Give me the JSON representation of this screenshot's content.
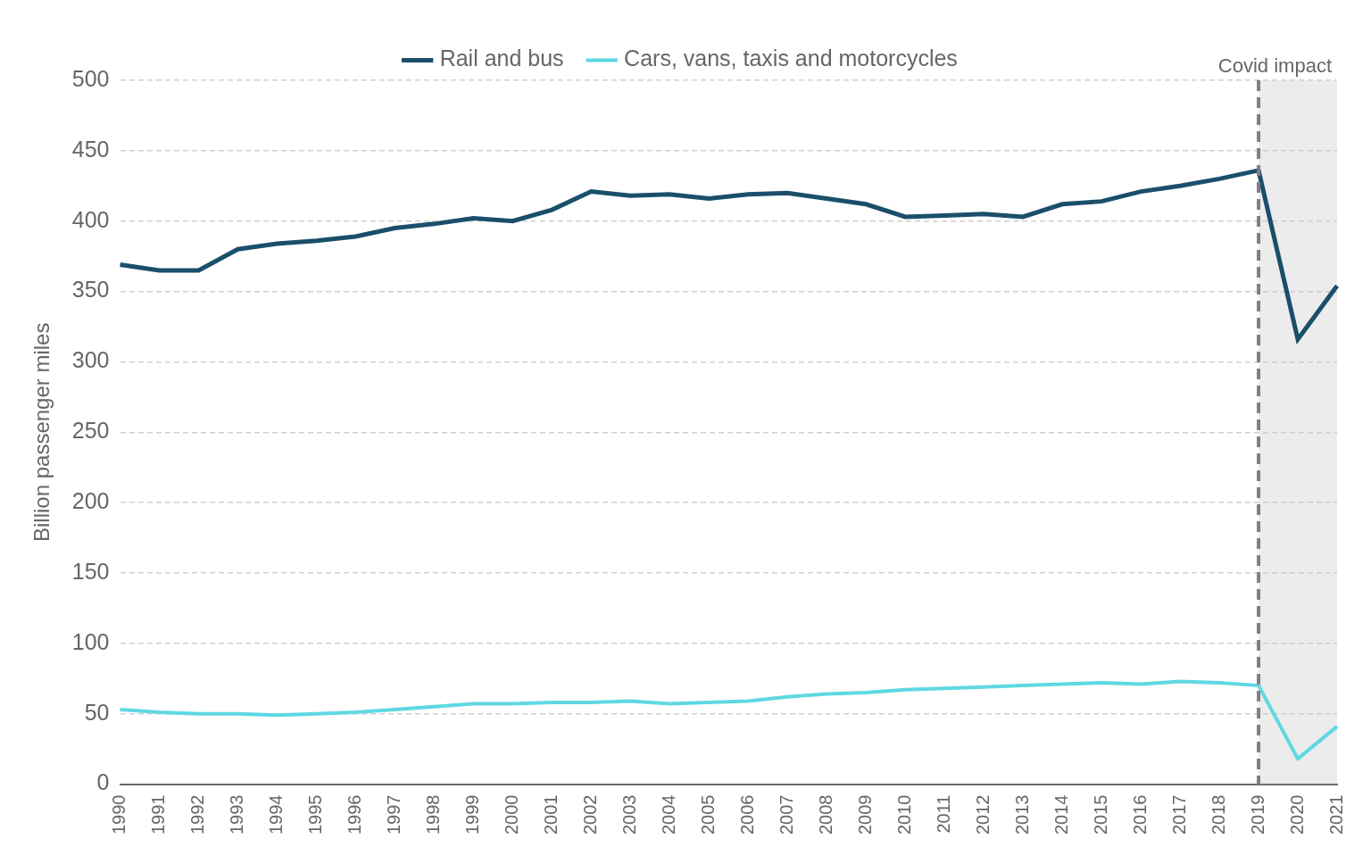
{
  "chart_data": {
    "type": "line",
    "y_label": "Billion passenger miles",
    "categories": [
      "1990",
      "1991",
      "1992",
      "1993",
      "1994",
      "1995",
      "1996",
      "1997",
      "1998",
      "1999",
      "2000",
      "2001",
      "2002",
      "2003",
      "2004",
      "2005",
      "2006",
      "2007",
      "2008",
      "2009",
      "2010",
      "2011",
      "2012",
      "2013",
      "2014",
      "2015",
      "2016",
      "2017",
      "2018",
      "2019",
      "2020",
      "2021"
    ],
    "series": [
      {
        "name": "Rail and bus",
        "color": "#1a4f6b",
        "values": [
          369,
          365,
          365,
          380,
          384,
          386,
          389,
          395,
          398,
          402,
          400,
          408,
          421,
          418,
          419,
          416,
          419,
          420,
          416,
          412,
          403,
          404,
          405,
          403,
          412,
          414,
          421,
          425,
          430,
          436,
          316,
          354
        ]
      },
      {
        "name": "Cars, vans, taxis and motorcycles",
        "color": "#5fd8e3",
        "values": [
          53,
          51,
          50,
          50,
          49,
          50,
          51,
          53,
          55,
          57,
          57,
          58,
          58,
          59,
          57,
          58,
          59,
          62,
          64,
          65,
          67,
          68,
          69,
          70,
          71,
          72,
          71,
          73,
          72,
          70,
          18,
          41
        ]
      }
    ],
    "ylim": [
      0,
      500
    ],
    "yticks": [
      0,
      50,
      100,
      150,
      200,
      250,
      300,
      350,
      400,
      450,
      500
    ],
    "grid": true,
    "legend": "top",
    "annotations": [
      {
        "label": "Covid impact",
        "from": "2019",
        "to": "2021"
      }
    ]
  }
}
